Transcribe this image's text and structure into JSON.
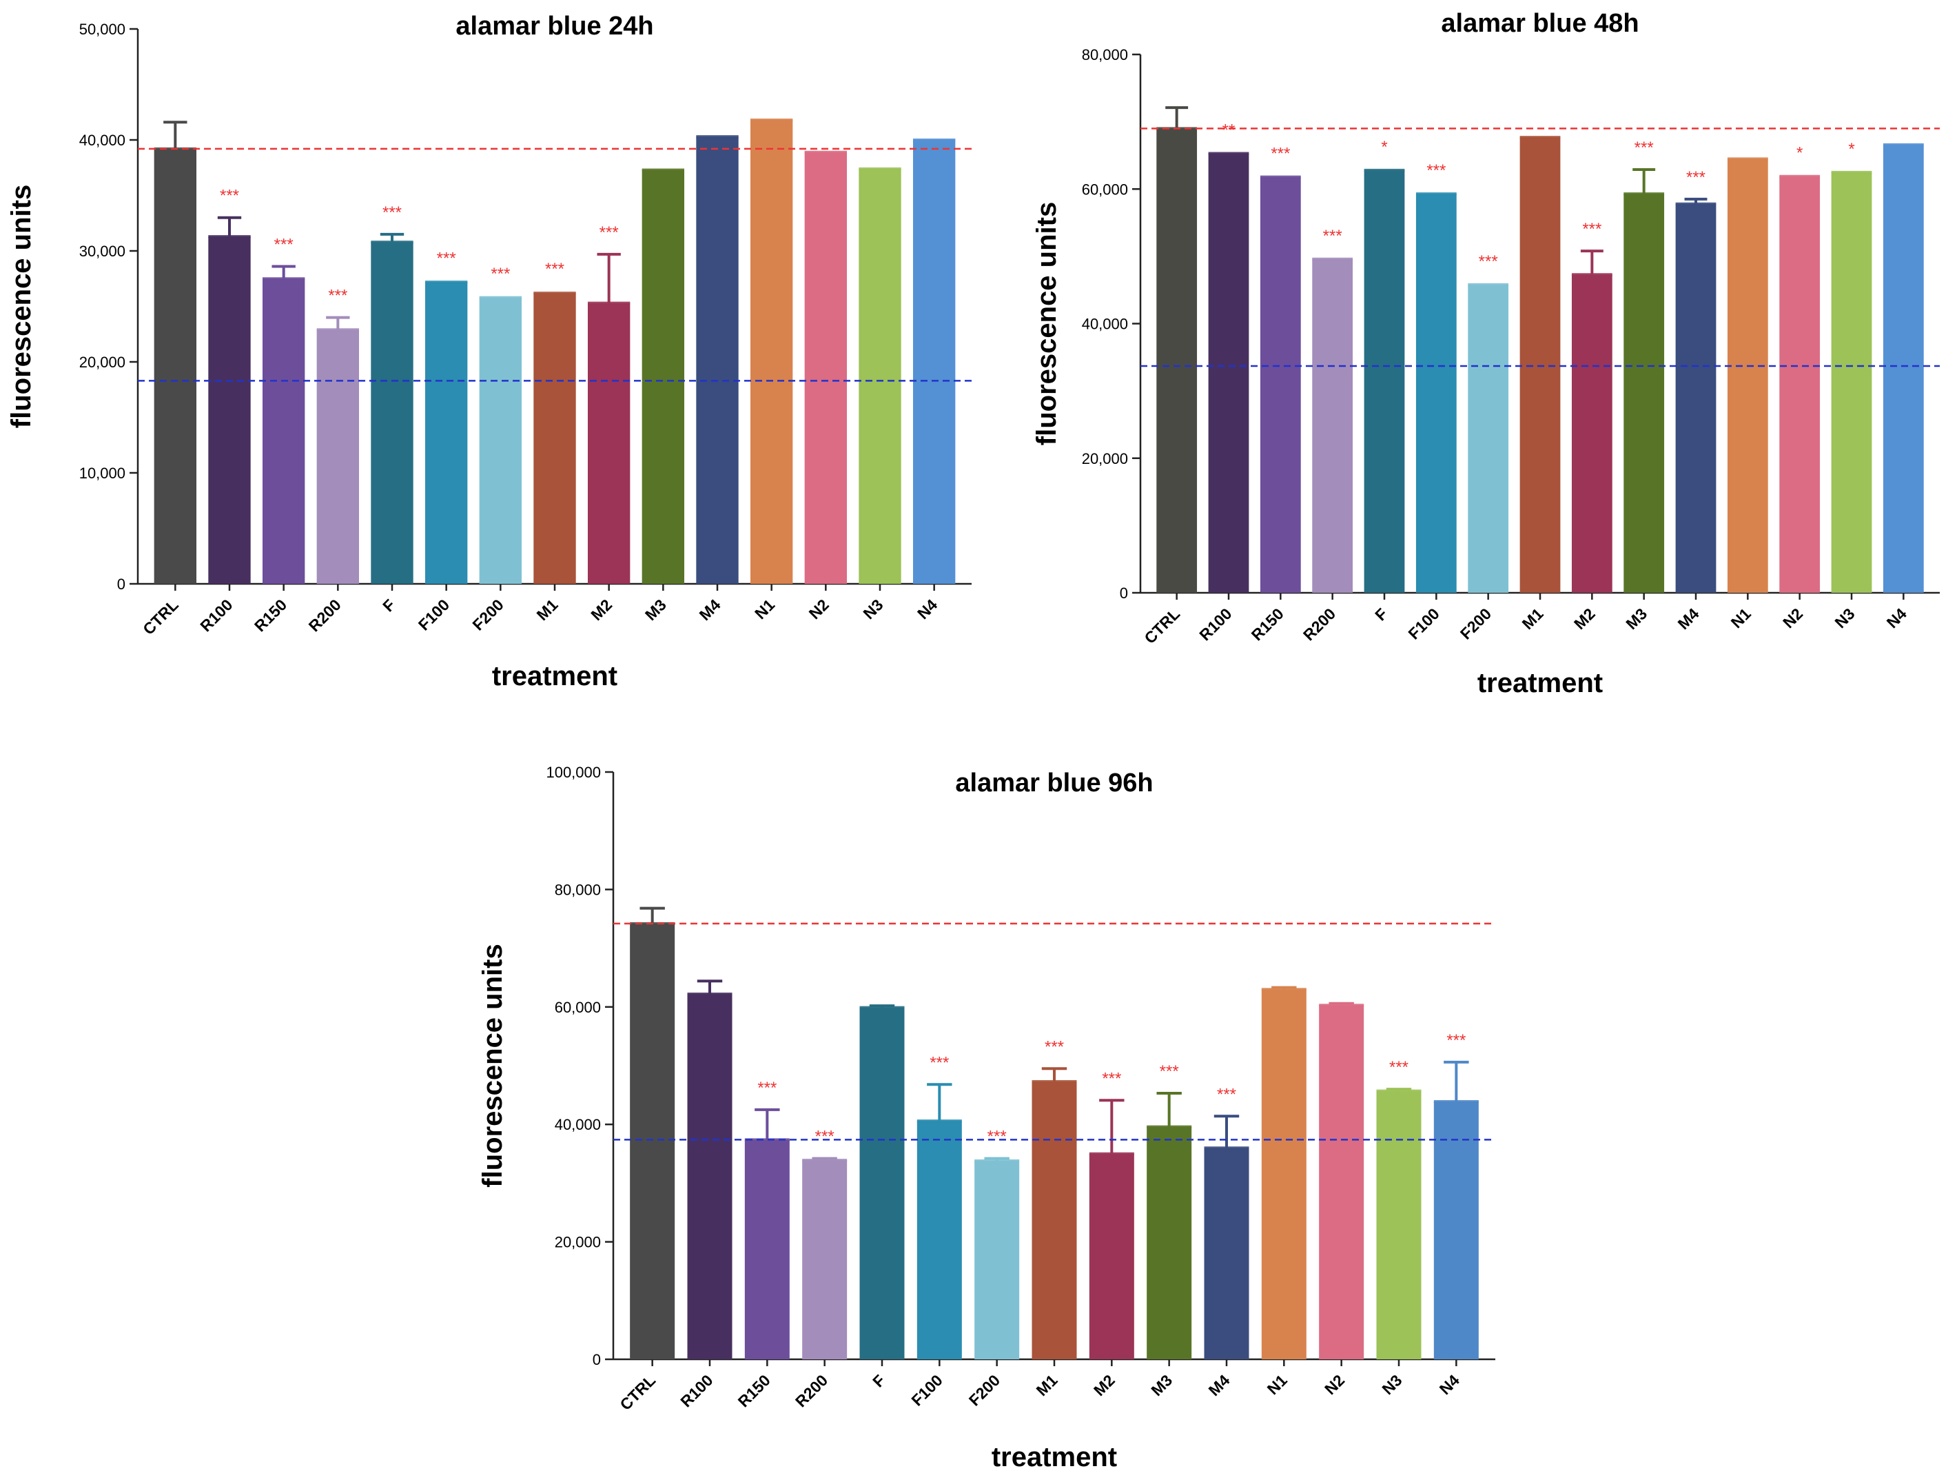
{
  "figure": {
    "panel_count": 3
  },
  "chart_data": [
    {
      "type": "bar",
      "title": "alamar blue 24h",
      "xlabel": "treatment",
      "ylabel": "fluorescence units",
      "ylim": [
        0,
        50000
      ],
      "yticks": [
        0,
        10000,
        20000,
        30000,
        40000,
        50000
      ],
      "ytick_labels": [
        "0",
        "10,000",
        "20,000",
        "30,000",
        "40,000",
        "50,000"
      ],
      "categories": [
        "CTRL",
        "R100",
        "R150",
        "R200",
        "F",
        "F100",
        "F200",
        "M1",
        "M2",
        "M3",
        "M4",
        "N1",
        "N2",
        "N3",
        "N4"
      ],
      "values": [
        39200,
        31300,
        27500,
        22900,
        30800,
        27200,
        25800,
        26200,
        25300,
        37300,
        40300,
        41800,
        38900,
        37400,
        40000
      ],
      "errors": [
        2400,
        1700,
        1100,
        1100,
        700,
        150,
        150,
        200,
        4400,
        150,
        150,
        100,
        100,
        100,
        100
      ],
      "significance": [
        "",
        "***",
        "***",
        "***",
        "***",
        "***",
        "***",
        "***",
        "***",
        "",
        "",
        "",
        "",
        "",
        ""
      ],
      "colors": [
        "#4a4a4a",
        "#47305f",
        "#6d4e9b",
        "#a38dbb",
        "#266e84",
        "#2b8db1",
        "#7fc1d3",
        "#a8533a",
        "#9b3456",
        "#587527",
        "#3a4d7e",
        "#d8834e",
        "#db6c84",
        "#9cc258",
        "#5490d4"
      ],
      "reference_lines": [
        {
          "value": 39200,
          "color": "#ee3333"
        },
        {
          "value": 18300,
          "color": "#2233cc"
        }
      ]
    },
    {
      "type": "bar",
      "title": "alamar blue 48h",
      "xlabel": "treatment",
      "ylabel": "fluorescence units",
      "ylim": [
        0,
        80000
      ],
      "yticks": [
        0,
        20000,
        40000,
        60000,
        80000
      ],
      "ytick_labels": [
        "0",
        "20,000",
        "40,000",
        "60,000",
        "80,000"
      ],
      "categories": [
        "CTRL",
        "R100",
        "R150",
        "R200",
        "F",
        "F100",
        "F200",
        "M1",
        "M2",
        "M3",
        "M4",
        "N1",
        "N2",
        "N3",
        "N4"
      ],
      "values": [
        69000,
        65300,
        61800,
        49600,
        62800,
        59300,
        45800,
        67700,
        47300,
        59300,
        57800,
        64500,
        61900,
        62500,
        66600
      ],
      "errors": [
        3100,
        200,
        200,
        200,
        200,
        200,
        200,
        200,
        3500,
        3600,
        700,
        200,
        200,
        200,
        200
      ],
      "significance": [
        "",
        "**",
        "***",
        "***",
        "*",
        "***",
        "***",
        "",
        "***",
        "***",
        "***",
        "",
        "*",
        "*",
        ""
      ],
      "colors": [
        "#4a4a45",
        "#47305f",
        "#6d4e9b",
        "#a38dbb",
        "#266e84",
        "#2b8db1",
        "#7fc1d3",
        "#a8533a",
        "#9b3456",
        "#587527",
        "#3a4d7e",
        "#d8834e",
        "#db6c84",
        "#9cc258",
        "#5490d4"
      ],
      "reference_lines": [
        {
          "value": 69000,
          "color": "#ee3333"
        },
        {
          "value": 33700,
          "color": "#2233cc"
        }
      ]
    },
    {
      "type": "bar",
      "title": "alamar blue 96h",
      "xlabel": "treatment",
      "ylabel": "fluorescence units",
      "ylim": [
        0,
        100000
      ],
      "yticks": [
        0,
        20000,
        40000,
        60000,
        80000,
        100000
      ],
      "ytick_labels": [
        "0",
        "20,000",
        "40,000",
        "60,000",
        "80,000",
        "100,000"
      ],
      "categories": [
        "CTRL",
        "R100",
        "R150",
        "R200",
        "F",
        "F100",
        "F200",
        "M1",
        "M2",
        "M3",
        "M4",
        "N1",
        "N2",
        "N3",
        "N4"
      ],
      "values": [
        74200,
        62200,
        37400,
        33900,
        59900,
        40600,
        33800,
        47300,
        35000,
        39600,
        36000,
        63000,
        60300,
        45700,
        43900
      ],
      "errors": [
        2600,
        2200,
        5100,
        300,
        300,
        6200,
        400,
        2200,
        9100,
        5700,
        5400,
        300,
        300,
        300,
        6700
      ],
      "significance": [
        "",
        "",
        "***",
        "***",
        "",
        "***",
        "***",
        "***",
        "***",
        "***",
        "***",
        "",
        "",
        "***",
        "***"
      ],
      "colors": [
        "#4a4a4a",
        "#47305f",
        "#6d4e9b",
        "#a38dbb",
        "#266e84",
        "#2b8db1",
        "#7fc1d3",
        "#a8533a",
        "#9b3456",
        "#587527",
        "#3a4d7e",
        "#d8834e",
        "#db6c84",
        "#9cc258",
        "#4f88c8"
      ],
      "reference_lines": [
        {
          "value": 74200,
          "color": "#ee3333"
        },
        {
          "value": 37400,
          "color": "#2233cc"
        }
      ]
    }
  ]
}
